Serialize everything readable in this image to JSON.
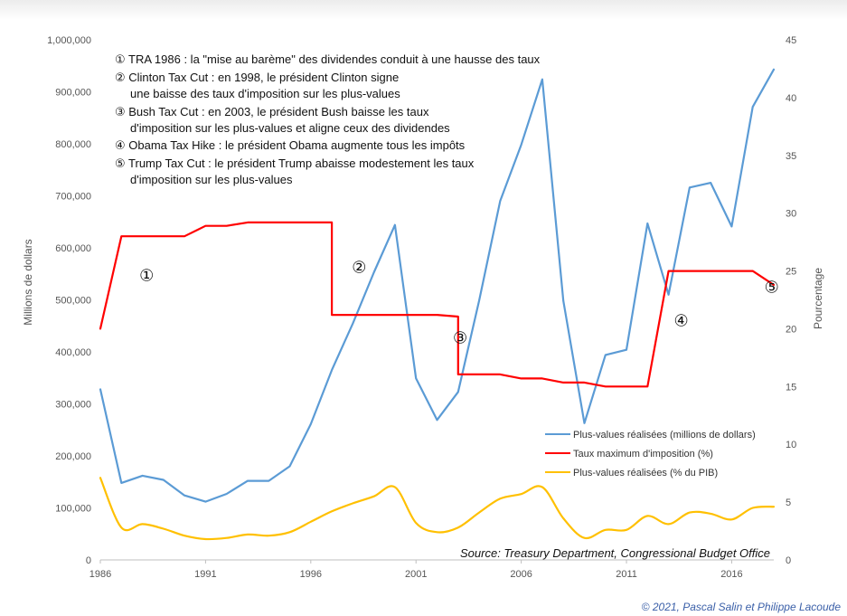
{
  "chart_data": {
    "type": "line",
    "x": [
      1986,
      1987,
      1988,
      1989,
      1990,
      1991,
      1992,
      1993,
      1994,
      1995,
      1996,
      1997,
      1998,
      1999,
      2000,
      2001,
      2002,
      2003,
      2004,
      2005,
      2006,
      2007,
      2008,
      2009,
      2010,
      2011,
      2012,
      2013,
      2014,
      2015,
      2016,
      2017,
      2018
    ],
    "xlim": [
      1986,
      2018
    ],
    "x_ticks": [
      "1986",
      "1991",
      "1996",
      "2001",
      "2006",
      "2011",
      "2016"
    ],
    "y_left": {
      "label": "Millions de dollars",
      "ylim": [
        0,
        1000000
      ],
      "ticks": [
        "0",
        "100,000",
        "200,000",
        "300,000",
        "400,000",
        "500,000",
        "600,000",
        "700,000",
        "800,000",
        "900,000",
        "1,000,000"
      ]
    },
    "y_right": {
      "label": "Pourcentage",
      "ylim": [
        0,
        45
      ],
      "ticks": [
        "0",
        "5",
        "10",
        "15",
        "20",
        "25",
        "30",
        "35",
        "40",
        "45"
      ]
    },
    "series": [
      {
        "name": "Plus-values réalisées (millions de dollars)",
        "axis": "left",
        "color": "#5b9bd5",
        "values": [
          328000,
          148000,
          162000,
          154000,
          124000,
          112000,
          127000,
          152000,
          152000,
          180000,
          261000,
          365000,
          455000,
          553000,
          644000,
          349000,
          269000,
          323000,
          499000,
          690000,
          798000,
          924000,
          498000,
          263000,
          394000,
          404000,
          647000,
          510000,
          716000,
          725000,
          641000,
          871000,
          943000
        ]
      },
      {
        "name": "Taux maximum d'imposition (%)",
        "axis": "right",
        "color": "#ff0000",
        "step": true,
        "points": [
          [
            1986,
            20
          ],
          [
            1987,
            28
          ],
          [
            1990,
            28
          ],
          [
            1991,
            28.9
          ],
          [
            1992,
            28.9
          ],
          [
            1993,
            29.2
          ],
          [
            1997,
            29.2
          ],
          [
            1997,
            21.2
          ],
          [
            2002,
            21.2
          ],
          [
            2003,
            21.05
          ],
          [
            2003,
            16.05
          ],
          [
            2005,
            16.05
          ],
          [
            2006,
            15.7
          ],
          [
            2007,
            15.7
          ],
          [
            2008,
            15.35
          ],
          [
            2009,
            15.35
          ],
          [
            2010,
            15
          ],
          [
            2012,
            15
          ],
          [
            2013,
            25
          ],
          [
            2017,
            25
          ],
          [
            2018,
            23.8
          ]
        ]
      },
      {
        "name": "Plus-values réalisées (% du PIB)",
        "axis": "right",
        "color": "#ffc000",
        "smooth": true,
        "values": [
          7.1,
          2.8,
          3.1,
          2.7,
          2.1,
          1.8,
          1.9,
          2.2,
          2.1,
          2.4,
          3.3,
          4.2,
          4.9,
          5.5,
          6.3,
          3.2,
          2.4,
          2.8,
          4.1,
          5.3,
          5.7,
          6.3,
          3.6,
          1.9,
          2.6,
          2.6,
          3.8,
          3.1,
          4.1,
          4.0,
          3.5,
          4.5,
          4.6
        ]
      }
    ],
    "legend": {
      "placement": "bottom-right",
      "items": [
        "Plus-values réalisées (millions de dollars)",
        "Taux maximum d'imposition (%)",
        "Plus-values réalisées (% du PIB)"
      ]
    },
    "annotations": {
      "notes": [
        "① TRA 1986 : la \"mise au barème\" des dividendes conduit à une hausse des taux",
        "② Clinton Tax Cut : en 1998, le président Clinton signe",
        "une baisse des taux d'imposition sur les plus-values",
        "③ Bush Tax Cut : en 2003, le président Bush baisse les taux",
        "d'imposition sur les plus-values et aligne ceux des dividendes",
        "④ Obama Tax Hike : le président Obama augmente tous les impôts",
        "⑤ Trump Tax Cut : le président Trump abaisse modestement les taux",
        "d'imposition sur les plus-values"
      ],
      "markers": [
        {
          "label": "①",
          "x": 1988.2,
          "y_pct": 24.6
        },
        {
          "label": "②",
          "x": 1998.3,
          "y_pct": 25.3
        },
        {
          "label": "③",
          "x": 2003.1,
          "y_pct": 19.2
        },
        {
          "label": "④",
          "x": 2013.6,
          "y_pct": 20.7
        },
        {
          "label": "⑤",
          "x": 2017.9,
          "y_pct": 23.6
        }
      ]
    },
    "source": "Source: Treasury Department, Congressional Budget Office",
    "grid": false
  },
  "copyright": "© 2021, Pascal Salin et Philippe Lacoude"
}
